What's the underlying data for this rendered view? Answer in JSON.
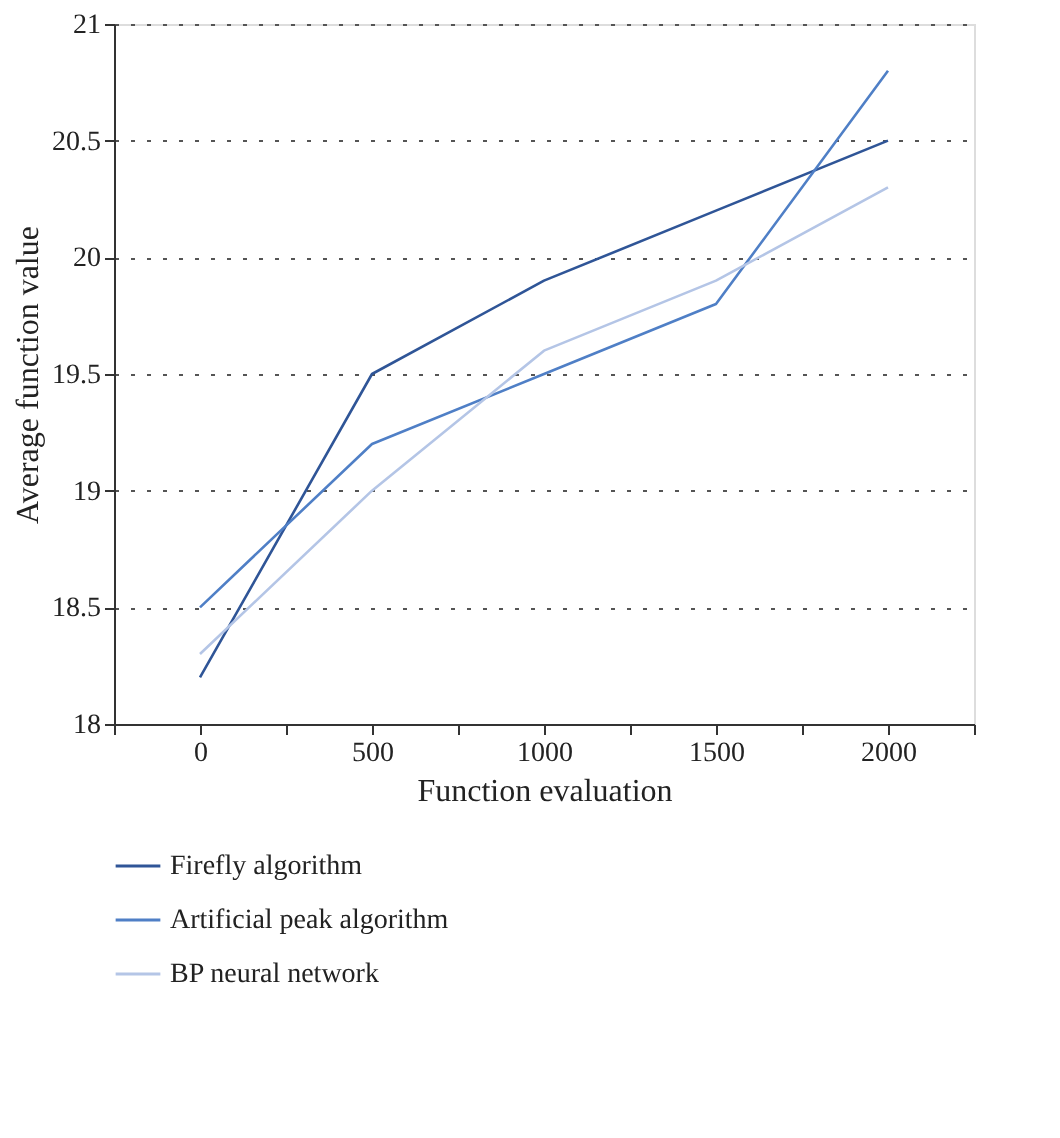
{
  "chart_data": {
    "type": "line",
    "xlabel": "Function evaluation",
    "ylabel": "Average function value",
    "x": [
      0,
      500,
      1000,
      1500,
      2000
    ],
    "series": [
      {
        "name": "Firefly algorithm",
        "color": "#2f5597",
        "values": [
          18.2,
          19.5,
          19.9,
          20.2,
          20.5
        ]
      },
      {
        "name": "Artificial peak algorithm",
        "color": "#4f7fc6",
        "values": [
          18.5,
          19.2,
          19.5,
          19.8,
          20.8
        ]
      },
      {
        "name": "BP neural network",
        "color": "#b4c5e6",
        "values": [
          18.3,
          19.0,
          19.6,
          19.9,
          20.3
        ]
      }
    ],
    "xlim": [
      -250,
      2250
    ],
    "xticks": [
      {
        "value": -250,
        "label": null
      },
      0,
      {
        "value": 250,
        "label": null
      },
      500,
      {
        "value": 750,
        "label": null
      },
      1000,
      {
        "value": 1250,
        "label": null
      },
      1500,
      {
        "value": 1750,
        "label": null
      },
      2000,
      {
        "value": 2250,
        "label": null
      }
    ],
    "ylim": [
      18,
      21
    ],
    "yticks": [
      18,
      18.5,
      19,
      19.5,
      20,
      20.5,
      21
    ],
    "grid": "y",
    "legend": "bottom",
    "marker": "none",
    "line_style": "solid"
  }
}
